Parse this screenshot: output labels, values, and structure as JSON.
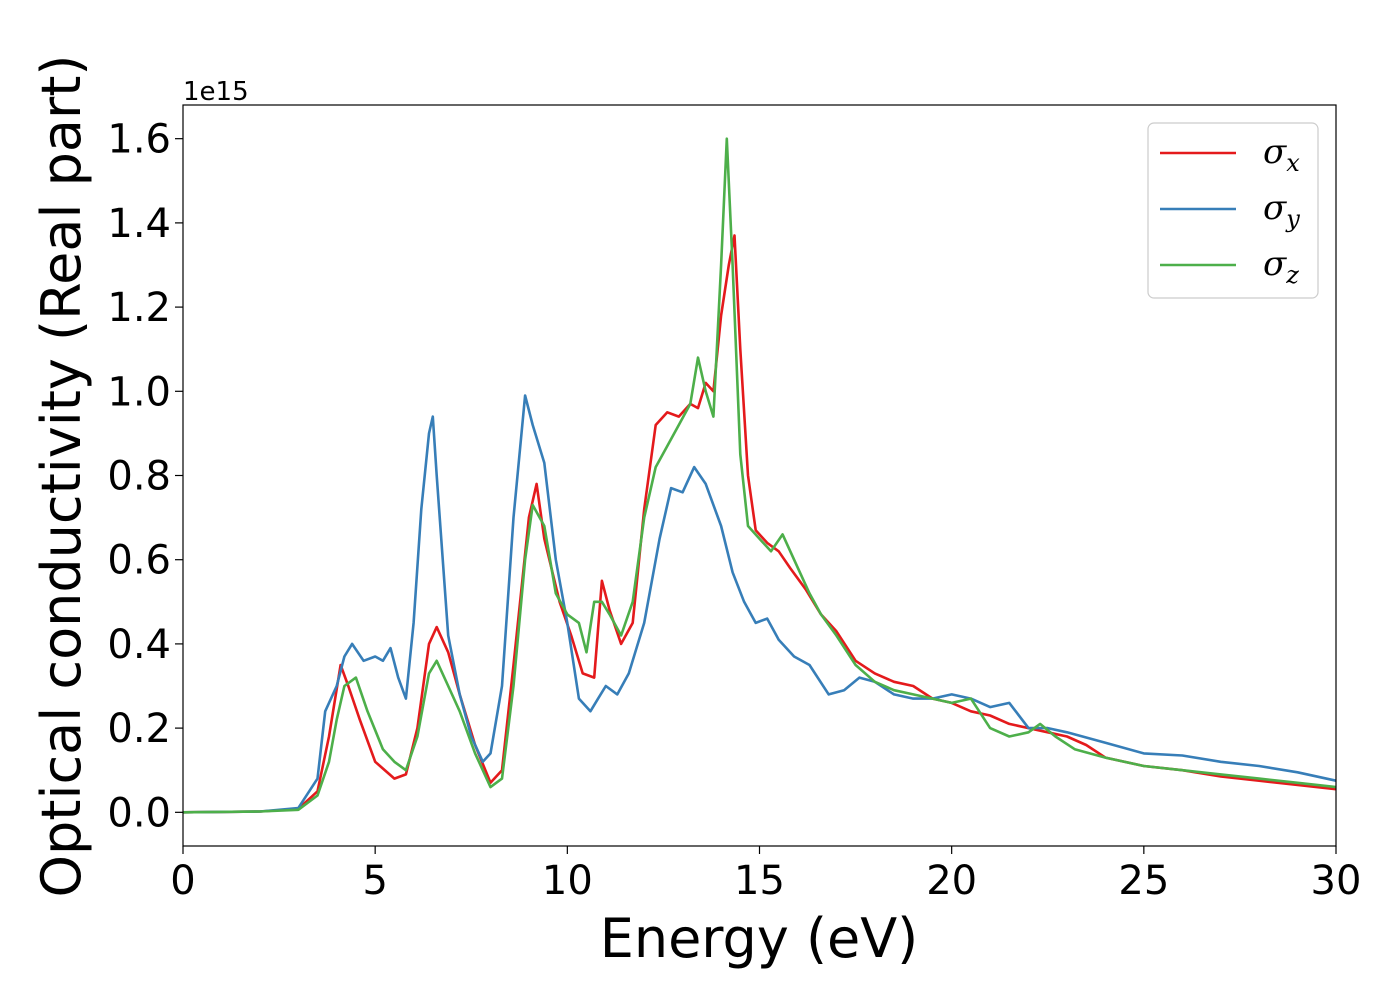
{
  "chart_data": {
    "type": "line",
    "xlabel": "Energy (eV)",
    "ylabel": "Optical conductivity (Real part)",
    "y_offset_label": "1e15",
    "xlim": [
      0,
      30
    ],
    "ylim": [
      -0.08,
      1.68
    ],
    "x_ticks": [
      "0",
      "5",
      "10",
      "15",
      "20",
      "25",
      "30"
    ],
    "y_ticks": [
      "0.0",
      "0.2",
      "0.4",
      "0.6",
      "0.8",
      "1.0",
      "1.2",
      "1.4",
      "1.6"
    ],
    "grid": false,
    "legend_position": "top-right",
    "series": [
      {
        "name": "σx",
        "base": "σ",
        "sub": "x",
        "color": "#e41a1c",
        "points": [
          [
            0,
            0
          ],
          [
            2,
            0.002
          ],
          [
            3,
            0.008
          ],
          [
            3.5,
            0.05
          ],
          [
            3.8,
            0.18
          ],
          [
            4.1,
            0.35
          ],
          [
            4.3,
            0.3
          ],
          [
            4.6,
            0.22
          ],
          [
            5.0,
            0.12
          ],
          [
            5.5,
            0.08
          ],
          [
            5.8,
            0.09
          ],
          [
            6.1,
            0.2
          ],
          [
            6.4,
            0.4
          ],
          [
            6.6,
            0.44
          ],
          [
            6.9,
            0.38
          ],
          [
            7.2,
            0.28
          ],
          [
            7.6,
            0.16
          ],
          [
            8.0,
            0.07
          ],
          [
            8.3,
            0.1
          ],
          [
            8.6,
            0.35
          ],
          [
            9.0,
            0.7
          ],
          [
            9.2,
            0.78
          ],
          [
            9.4,
            0.65
          ],
          [
            9.8,
            0.5
          ],
          [
            10.1,
            0.42
          ],
          [
            10.4,
            0.33
          ],
          [
            10.7,
            0.32
          ],
          [
            10.9,
            0.55
          ],
          [
            11.1,
            0.48
          ],
          [
            11.4,
            0.4
          ],
          [
            11.7,
            0.45
          ],
          [
            12.0,
            0.72
          ],
          [
            12.3,
            0.92
          ],
          [
            12.6,
            0.95
          ],
          [
            12.9,
            0.94
          ],
          [
            13.2,
            0.97
          ],
          [
            13.4,
            0.96
          ],
          [
            13.6,
            1.02
          ],
          [
            13.8,
            1.0
          ],
          [
            14.0,
            1.18
          ],
          [
            14.2,
            1.3
          ],
          [
            14.35,
            1.37
          ],
          [
            14.5,
            1.1
          ],
          [
            14.7,
            0.8
          ],
          [
            14.9,
            0.67
          ],
          [
            15.2,
            0.64
          ],
          [
            15.5,
            0.62
          ],
          [
            15.8,
            0.58
          ],
          [
            16.2,
            0.53
          ],
          [
            16.6,
            0.47
          ],
          [
            17.0,
            0.43
          ],
          [
            17.5,
            0.36
          ],
          [
            18,
            0.33
          ],
          [
            18.5,
            0.31
          ],
          [
            19,
            0.3
          ],
          [
            19.5,
            0.27
          ],
          [
            20,
            0.26
          ],
          [
            20.5,
            0.24
          ],
          [
            21,
            0.23
          ],
          [
            21.5,
            0.21
          ],
          [
            22,
            0.2
          ],
          [
            22.5,
            0.19
          ],
          [
            23,
            0.18
          ],
          [
            23.5,
            0.16
          ],
          [
            24,
            0.13
          ],
          [
            25,
            0.11
          ],
          [
            26,
            0.1
          ],
          [
            27,
            0.085
          ],
          [
            28,
            0.075
          ],
          [
            29,
            0.065
          ],
          [
            30,
            0.055
          ]
        ]
      },
      {
        "name": "σy",
        "base": "σ",
        "sub": "y",
        "color": "#377eb8",
        "points": [
          [
            0,
            0
          ],
          [
            2,
            0.002
          ],
          [
            3,
            0.01
          ],
          [
            3.5,
            0.08
          ],
          [
            3.7,
            0.24
          ],
          [
            4.0,
            0.3
          ],
          [
            4.2,
            0.37
          ],
          [
            4.4,
            0.4
          ],
          [
            4.7,
            0.36
          ],
          [
            5.0,
            0.37
          ],
          [
            5.2,
            0.36
          ],
          [
            5.4,
            0.39
          ],
          [
            5.6,
            0.32
          ],
          [
            5.8,
            0.27
          ],
          [
            6.0,
            0.45
          ],
          [
            6.2,
            0.72
          ],
          [
            6.4,
            0.9
          ],
          [
            6.5,
            0.94
          ],
          [
            6.6,
            0.8
          ],
          [
            6.9,
            0.42
          ],
          [
            7.2,
            0.28
          ],
          [
            7.5,
            0.18
          ],
          [
            7.8,
            0.12
          ],
          [
            8.0,
            0.14
          ],
          [
            8.3,
            0.3
          ],
          [
            8.6,
            0.7
          ],
          [
            8.9,
            0.99
          ],
          [
            9.1,
            0.92
          ],
          [
            9.4,
            0.83
          ],
          [
            9.7,
            0.6
          ],
          [
            10.0,
            0.45
          ],
          [
            10.3,
            0.27
          ],
          [
            10.6,
            0.24
          ],
          [
            10.8,
            0.27
          ],
          [
            11.0,
            0.3
          ],
          [
            11.3,
            0.28
          ],
          [
            11.6,
            0.33
          ],
          [
            12.0,
            0.45
          ],
          [
            12.4,
            0.65
          ],
          [
            12.7,
            0.77
          ],
          [
            13.0,
            0.76
          ],
          [
            13.3,
            0.82
          ],
          [
            13.6,
            0.78
          ],
          [
            14.0,
            0.68
          ],
          [
            14.3,
            0.57
          ],
          [
            14.6,
            0.5
          ],
          [
            14.9,
            0.45
          ],
          [
            15.2,
            0.46
          ],
          [
            15.5,
            0.41
          ],
          [
            15.9,
            0.37
          ],
          [
            16.3,
            0.35
          ],
          [
            16.8,
            0.28
          ],
          [
            17.2,
            0.29
          ],
          [
            17.6,
            0.32
          ],
          [
            18,
            0.31
          ],
          [
            18.5,
            0.28
          ],
          [
            19,
            0.27
          ],
          [
            19.5,
            0.27
          ],
          [
            20,
            0.28
          ],
          [
            20.5,
            0.27
          ],
          [
            21,
            0.25
          ],
          [
            21.5,
            0.26
          ],
          [
            22,
            0.2
          ],
          [
            22.5,
            0.2
          ],
          [
            23,
            0.19
          ],
          [
            24,
            0.165
          ],
          [
            25,
            0.14
          ],
          [
            26,
            0.135
          ],
          [
            27,
            0.12
          ],
          [
            28,
            0.11
          ],
          [
            29,
            0.095
          ],
          [
            30,
            0.075
          ]
        ]
      },
      {
        "name": "σz",
        "base": "σ",
        "sub": "z",
        "color": "#4daf4a",
        "points": [
          [
            0,
            0
          ],
          [
            2,
            0.002
          ],
          [
            3,
            0.006
          ],
          [
            3.5,
            0.04
          ],
          [
            3.8,
            0.12
          ],
          [
            4.0,
            0.22
          ],
          [
            4.2,
            0.3
          ],
          [
            4.5,
            0.32
          ],
          [
            4.8,
            0.24
          ],
          [
            5.2,
            0.15
          ],
          [
            5.5,
            0.12
          ],
          [
            5.8,
            0.1
          ],
          [
            6.1,
            0.18
          ],
          [
            6.4,
            0.33
          ],
          [
            6.6,
            0.36
          ],
          [
            6.9,
            0.3
          ],
          [
            7.2,
            0.24
          ],
          [
            7.6,
            0.14
          ],
          [
            8.0,
            0.06
          ],
          [
            8.3,
            0.08
          ],
          [
            8.6,
            0.3
          ],
          [
            8.9,
            0.6
          ],
          [
            9.1,
            0.73
          ],
          [
            9.4,
            0.68
          ],
          [
            9.7,
            0.52
          ],
          [
            10.0,
            0.47
          ],
          [
            10.3,
            0.45
          ],
          [
            10.5,
            0.38
          ],
          [
            10.7,
            0.5
          ],
          [
            10.9,
            0.5
          ],
          [
            11.1,
            0.47
          ],
          [
            11.4,
            0.42
          ],
          [
            11.7,
            0.5
          ],
          [
            12.0,
            0.7
          ],
          [
            12.3,
            0.82
          ],
          [
            12.6,
            0.87
          ],
          [
            12.9,
            0.92
          ],
          [
            13.2,
            0.97
          ],
          [
            13.4,
            1.08
          ],
          [
            13.6,
            1.0
          ],
          [
            13.8,
            0.94
          ],
          [
            14.0,
            1.3
          ],
          [
            14.15,
            1.6
          ],
          [
            14.3,
            1.3
          ],
          [
            14.5,
            0.85
          ],
          [
            14.7,
            0.68
          ],
          [
            15.0,
            0.65
          ],
          [
            15.3,
            0.62
          ],
          [
            15.6,
            0.66
          ],
          [
            15.9,
            0.6
          ],
          [
            16.3,
            0.52
          ],
          [
            16.6,
            0.47
          ],
          [
            17.0,
            0.42
          ],
          [
            17.5,
            0.35
          ],
          [
            18,
            0.31
          ],
          [
            18.5,
            0.29
          ],
          [
            19,
            0.28
          ],
          [
            19.5,
            0.27
          ],
          [
            20,
            0.26
          ],
          [
            20.5,
            0.27
          ],
          [
            21,
            0.2
          ],
          [
            21.5,
            0.18
          ],
          [
            22,
            0.19
          ],
          [
            22.3,
            0.21
          ],
          [
            22.7,
            0.18
          ],
          [
            23.2,
            0.15
          ],
          [
            24,
            0.13
          ],
          [
            25,
            0.11
          ],
          [
            26,
            0.1
          ],
          [
            27,
            0.09
          ],
          [
            28,
            0.08
          ],
          [
            29,
            0.07
          ],
          [
            30,
            0.06
          ]
        ]
      }
    ]
  }
}
